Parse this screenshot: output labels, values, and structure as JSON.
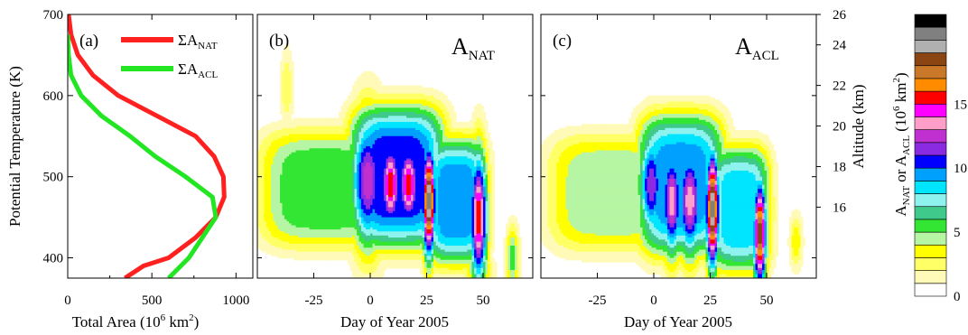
{
  "palette": [
    "#ffffff",
    "#fffab8",
    "#ffff66",
    "#ffff00",
    "#b6f5a3",
    "#33e633",
    "#3fc98b",
    "#8ef2ef",
    "#00e5ff",
    "#00a0ff",
    "#0000ff",
    "#8a2be2",
    "#c030d0",
    "#ff9ec8",
    "#ff00ff",
    "#ff0000",
    "#ff8c00",
    "#c87828",
    "#8b4513",
    "#b0b0b0",
    "#808080",
    "#000000"
  ],
  "colorbar": {
    "label_main": "A",
    "label_sub1": "NAT",
    "label_or": " or A",
    "label_sub2": "ACL",
    "label_unit": " (10",
    "label_exp": "6",
    "label_tail": " km",
    "label_exp2": "2",
    "label_end": ")",
    "ticks": [
      "0",
      "5",
      "10",
      "15"
    ],
    "range": [
      0,
      21
    ]
  },
  "chart_data": [
    {
      "panel": "(a)",
      "type": "line",
      "xlabel_main": "Total Area (10",
      "xlabel_exp": "6",
      "xlabel_tail": " km",
      "xlabel_exp2": "2",
      "xlabel_end": ")",
      "ylabel": "Potential Temperature (K)",
      "xlim": [
        0,
        1100
      ],
      "ylim": [
        375,
        700
      ],
      "xticks": [
        0,
        500,
        1000
      ],
      "yticks": [
        400,
        500,
        600,
        700
      ],
      "legend": [
        {
          "sym": "ΣA",
          "sub": "NAT",
          "color": "#ff2020"
        },
        {
          "sym": "ΣA",
          "sub": "ACL",
          "color": "#22e622"
        }
      ],
      "series": [
        {
          "name": "ΣANAT",
          "color": "#ff2020",
          "points": [
            [
              340,
              375
            ],
            [
              450,
              390
            ],
            [
              600,
              400
            ],
            [
              760,
              425
            ],
            [
              880,
              450
            ],
            [
              930,
              475
            ],
            [
              925,
              500
            ],
            [
              870,
              525
            ],
            [
              760,
              550
            ],
            [
              530,
              575
            ],
            [
              300,
              600
            ],
            [
              150,
              625
            ],
            [
              60,
              650
            ],
            [
              20,
              675
            ],
            [
              5,
              700
            ]
          ]
        },
        {
          "name": "ΣACL",
          "color": "#22e622",
          "points": [
            [
              600,
              375
            ],
            [
              720,
              400
            ],
            [
              800,
              425
            ],
            [
              880,
              450
            ],
            [
              860,
              475
            ],
            [
              700,
              500
            ],
            [
              520,
              525
            ],
            [
              370,
              550
            ],
            [
              200,
              575
            ],
            [
              80,
              600
            ],
            [
              20,
              625
            ],
            [
              5,
              650
            ],
            [
              0,
              675
            ]
          ]
        }
      ]
    },
    {
      "panel": "(b)",
      "type": "heatmap",
      "title_main": "A",
      "title_sub": "NAT",
      "xlabel": "Day of Year 2005",
      "xlim": [
        -50,
        72
      ],
      "ylim": [
        375,
        700
      ],
      "xticks": [
        -25,
        0,
        25,
        50
      ]
    },
    {
      "panel": "(c)",
      "type": "heatmap",
      "title_main": "A",
      "title_sub": "ACL",
      "xlabel": "Day of Year 2005",
      "xlim": [
        -50,
        72
      ],
      "ylim": [
        375,
        700
      ],
      "xticks": [
        -25,
        0,
        25,
        50
      ],
      "y2label": "Altitude (km)",
      "y2ticks": [
        16,
        18,
        20,
        22,
        24,
        26
      ]
    }
  ]
}
